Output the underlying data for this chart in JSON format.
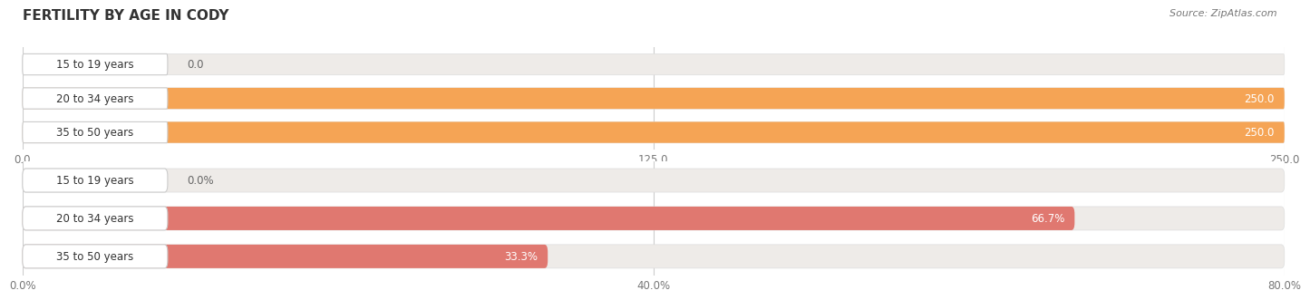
{
  "title": "FERTILITY BY AGE IN CODY",
  "source": "Source: ZipAtlas.com",
  "top_chart": {
    "categories": [
      "15 to 19 years",
      "20 to 34 years",
      "35 to 50 years"
    ],
    "values": [
      0.0,
      250.0,
      250.0
    ],
    "value_labels": [
      "0.0",
      "250.0",
      "250.0"
    ],
    "max_value": 250.0,
    "x_ticks": [
      0.0,
      125.0,
      250.0
    ],
    "x_tick_labels": [
      "0.0",
      "125.0",
      "250.0"
    ],
    "bar_color": "#F5A455",
    "bg_color": "#EEEBE8",
    "label_bg": "#FFFFFF"
  },
  "bottom_chart": {
    "categories": [
      "15 to 19 years",
      "20 to 34 years",
      "35 to 50 years"
    ],
    "values": [
      0.0,
      66.7,
      33.3
    ],
    "value_labels": [
      "0.0%",
      "66.7%",
      "33.3%"
    ],
    "max_value": 80.0,
    "x_ticks": [
      0.0,
      40.0,
      80.0
    ],
    "x_tick_labels": [
      "0.0%",
      "40.0%",
      "80.0%"
    ],
    "bar_color": "#E07870",
    "bg_color": "#EEEBE8",
    "label_bg": "#FFFFFF"
  },
  "label_fontsize": 8.5,
  "value_fontsize": 8.5,
  "title_fontsize": 11,
  "source_fontsize": 8.0,
  "title_color": "#333333",
  "tick_color": "#777777",
  "grid_color": "#CCCCCC",
  "value_label_inside_color": "#FFFFFF",
  "value_label_outside_color": "#666666"
}
